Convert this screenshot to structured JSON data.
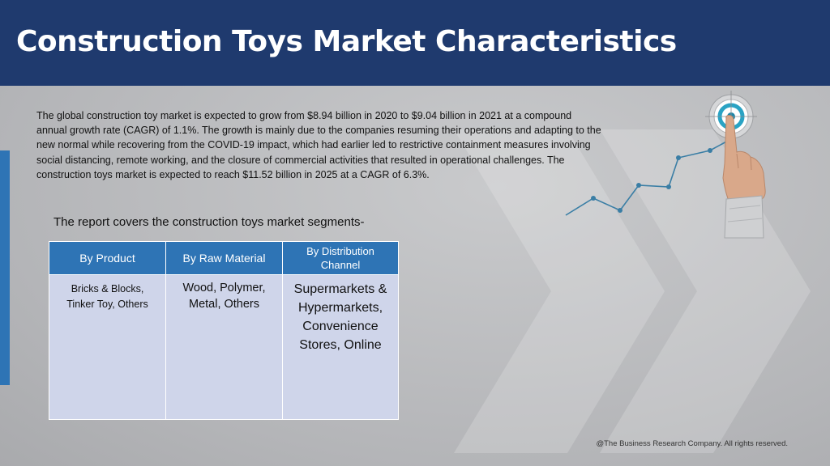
{
  "slide": {
    "title": "Construction Toys Market Characteristics",
    "intro": "The global construction toy market is expected to grow from $8.94 billion in 2020 to $9.04 billion in 2021 at a compound annual growth rate (CAGR) of 1.1%. The growth is mainly due to the companies resuming their operations and adapting to the new normal while recovering from the COVID-19 impact, which had earlier led to restrictive containment measures involving social distancing, remote working, and the closure of commercial activities that resulted in operational challenges. The construction toys market is expected to reach $11.52 billion in 2025 at a CAGR of 6.3%.",
    "segments_heading": "The report covers the construction toys market segments-",
    "footer": "@The Business Research Company. All rights reserved."
  },
  "segments_table": {
    "headers": [
      "By Product",
      "By Raw Material",
      "By Distribution\nChannel"
    ],
    "cells": [
      "Bricks & Blocks,\nTinker Toy, Others",
      "Wood, Polymer,\nMetal, Others",
      "Supermarkets &\nHypermarkets,\nConvenience\nStores, Online"
    ]
  },
  "graphic": {
    "icons": [
      "target-icon",
      "pointing-hand-icon",
      "growth-line-icon"
    ],
    "colors": {
      "header": "#1f3a6e",
      "accent": "#2e74b5",
      "table_cell": "#cfd5ea",
      "target_ring": "#2aa3c4",
      "trend_line": "#3a7ea5"
    }
  }
}
